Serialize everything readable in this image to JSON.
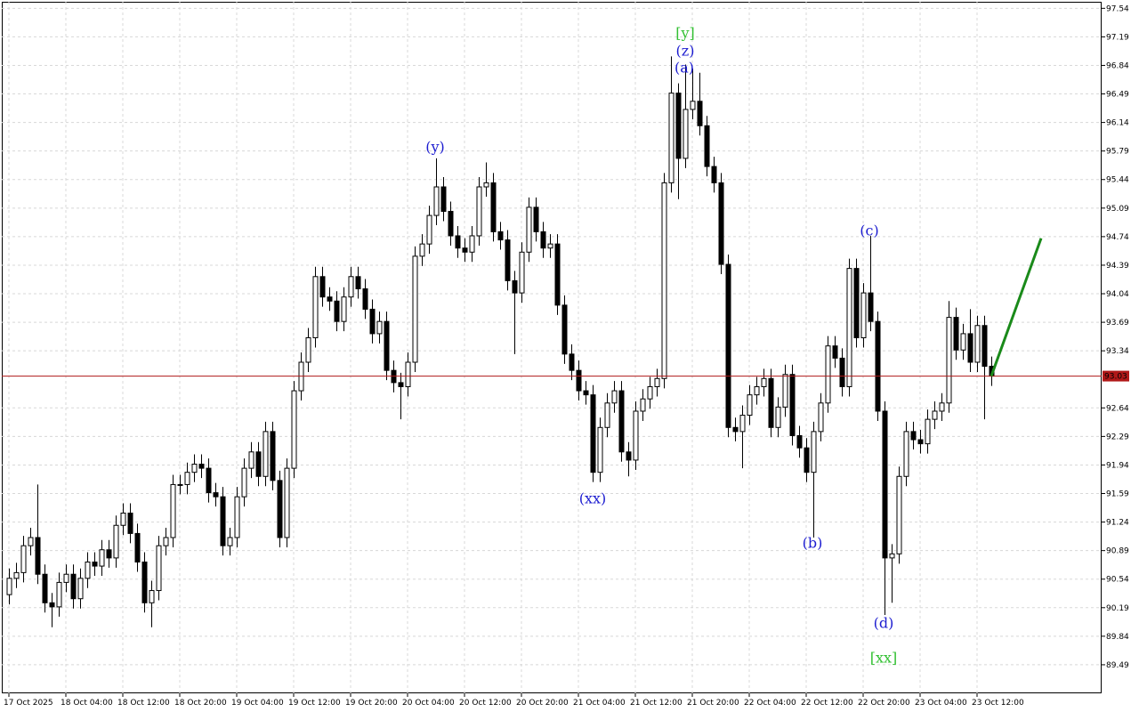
{
  "chart_data": {
    "type": "candlestick",
    "categories": [
      "17 Oct 2025",
      null,
      null,
      null,
      null,
      null,
      null,
      null,
      "18 Oct 04:00",
      null,
      null,
      null,
      null,
      null,
      null,
      null,
      "18 Oct 12:00",
      null,
      null,
      null,
      null,
      null,
      null,
      null,
      "18 Oct 20:00",
      null,
      null,
      null,
      null,
      null,
      null,
      null,
      "19 Oct 04:00",
      null,
      null,
      null,
      null,
      null,
      null,
      null,
      "19 Oct 12:00",
      null,
      null,
      null,
      null,
      null,
      null,
      null,
      "19 Oct 20:00",
      null,
      null,
      null,
      null,
      null,
      null,
      null,
      "20 Oct 04:00",
      null,
      null,
      null,
      null,
      null,
      null,
      null,
      "20 Oct 12:00",
      null,
      null,
      null,
      null,
      null,
      null,
      null,
      "20 Oct 20:00",
      null,
      null,
      null,
      null,
      null,
      null,
      null,
      "21 Oct 04:00",
      null,
      null,
      null,
      null,
      null,
      null,
      null,
      "21 Oct 12:00",
      null,
      null,
      null,
      null,
      null,
      null,
      null,
      "21 Oct 20:00",
      null,
      null,
      null,
      null,
      null,
      null,
      null,
      "22 Oct 04:00",
      null,
      null,
      null,
      null,
      null,
      null,
      null,
      "22 Oct 12:00",
      null,
      null,
      null,
      null,
      null,
      null,
      null,
      "22 Oct 20:00",
      null,
      null,
      null,
      null,
      null,
      null,
      null,
      "23 Oct 04:00",
      null,
      null,
      null,
      null,
      null,
      null,
      null,
      "23 Oct 12:00",
      null,
      null
    ],
    "open": [
      90.35,
      90.55,
      90.62,
      90.95,
      91.05,
      90.6,
      90.25,
      90.2,
      90.5,
      90.6,
      90.3,
      90.55,
      90.75,
      90.7,
      90.9,
      90.8,
      91.2,
      91.35,
      91.1,
      90.75,
      90.25,
      90.4,
      90.95,
      91.05,
      91.7,
      91.7,
      91.85,
      91.95,
      91.9,
      91.6,
      91.55,
      90.95,
      91.05,
      91.55,
      91.9,
      92.1,
      91.8,
      92.35,
      91.75,
      91.05,
      91.9,
      92.85,
      93.2,
      93.5,
      94.25,
      94.0,
      93.95,
      93.7,
      94.0,
      94.25,
      94.1,
      93.85,
      93.55,
      93.7,
      93.1,
      92.95,
      92.9,
      93.2,
      94.5,
      94.65,
      95.0,
      95.35,
      95.05,
      94.75,
      94.6,
      94.55,
      94.75,
      95.35,
      95.4,
      94.8,
      94.7,
      94.2,
      94.05,
      94.55,
      95.1,
      94.8,
      94.6,
      94.65,
      93.9,
      93.3,
      93.1,
      92.85,
      92.8,
      91.85,
      92.4,
      92.7,
      92.85,
      92.1,
      92.0,
      92.6,
      92.75,
      92.9,
      93.0,
      95.4,
      96.5,
      95.7,
      96.3,
      96.4,
      96.1,
      95.6,
      95.4,
      94.4,
      92.4,
      92.35,
      92.55,
      92.8,
      92.9,
      93.0,
      92.4,
      92.65,
      93.05,
      92.3,
      92.15,
      91.85,
      92.35,
      92.7,
      93.4,
      93.25,
      92.9,
      94.35,
      93.5,
      94.05,
      93.7,
      92.6,
      90.8,
      90.85,
      91.8,
      92.35,
      92.25,
      92.2,
      92.5,
      92.6,
      92.7,
      93.75,
      93.35,
      93.55,
      93.2,
      93.65,
      93.15
    ],
    "high": [
      90.67,
      90.74,
      91.07,
      91.17,
      91.7,
      90.72,
      90.37,
      90.62,
      90.72,
      90.72,
      90.67,
      90.87,
      90.87,
      91.02,
      91.02,
      91.32,
      91.47,
      91.47,
      91.22,
      90.87,
      90.52,
      91.07,
      91.17,
      91.82,
      91.82,
      91.97,
      92.07,
      92.07,
      92.02,
      91.72,
      91.67,
      91.17,
      91.67,
      92.02,
      92.22,
      92.22,
      92.47,
      92.47,
      91.87,
      92.02,
      92.97,
      93.32,
      93.62,
      94.37,
      94.37,
      94.12,
      94.07,
      94.12,
      94.37,
      94.37,
      94.22,
      93.97,
      93.82,
      93.82,
      93.22,
      93.07,
      93.32,
      94.62,
      94.77,
      95.12,
      95.7,
      95.47,
      95.17,
      94.87,
      94.72,
      94.87,
      95.47,
      95.65,
      95.52,
      94.92,
      94.82,
      94.32,
      94.67,
      95.22,
      95.22,
      94.92,
      94.77,
      94.77,
      94.02,
      93.42,
      93.22,
      92.97,
      92.92,
      92.52,
      92.82,
      92.97,
      92.97,
      92.22,
      92.72,
      92.87,
      93.02,
      93.12,
      95.52,
      96.95,
      96.62,
      96.85,
      96.8,
      96.75,
      96.22,
      95.72,
      95.52,
      94.52,
      92.52,
      92.67,
      92.92,
      93.02,
      93.12,
      93.12,
      92.77,
      93.17,
      93.17,
      92.42,
      92.27,
      92.47,
      92.82,
      93.52,
      93.52,
      93.37,
      94.47,
      94.47,
      94.17,
      94.75,
      93.82,
      92.72,
      90.97,
      91.92,
      92.47,
      92.47,
      92.37,
      92.62,
      92.72,
      92.82,
      93.95,
      93.87,
      93.67,
      93.85,
      93.77,
      93.77,
      93.27
    ],
    "low": [
      90.23,
      90.43,
      90.5,
      90.83,
      90.48,
      90.13,
      89.95,
      90.08,
      90.38,
      90.18,
      90.18,
      90.43,
      90.58,
      90.58,
      90.68,
      90.68,
      91.08,
      90.98,
      90.63,
      90.13,
      89.95,
      90.28,
      90.83,
      90.93,
      91.58,
      91.58,
      91.73,
      91.78,
      91.48,
      91.43,
      90.83,
      90.83,
      90.93,
      91.43,
      91.78,
      91.68,
      91.68,
      91.63,
      90.93,
      90.93,
      91.78,
      92.73,
      93.08,
      93.38,
      93.88,
      93.83,
      93.58,
      93.58,
      93.88,
      93.98,
      93.73,
      93.43,
      93.43,
      92.98,
      92.83,
      92.5,
      92.78,
      93.08,
      94.38,
      94.53,
      94.88,
      94.93,
      94.63,
      94.48,
      94.43,
      94.43,
      94.63,
      95.23,
      94.68,
      94.58,
      94.08,
      93.3,
      93.93,
      94.43,
      94.68,
      94.48,
      94.48,
      93.78,
      93.18,
      92.98,
      92.73,
      92.68,
      91.73,
      91.73,
      92.28,
      92.58,
      91.98,
      91.8,
      91.88,
      92.48,
      92.63,
      92.78,
      92.88,
      95.28,
      95.2,
      95.58,
      96.18,
      95.98,
      95.48,
      95.28,
      94.28,
      92.28,
      92.23,
      91.9,
      92.43,
      92.68,
      92.78,
      92.28,
      92.28,
      92.53,
      92.18,
      92.03,
      91.73,
      91.05,
      92.23,
      92.58,
      93.13,
      92.78,
      92.78,
      93.38,
      93.38,
      93.58,
      92.48,
      90.1,
      90.25,
      90.73,
      91.68,
      92.13,
      92.08,
      92.08,
      92.38,
      92.48,
      92.58,
      93.23,
      93.23,
      93.08,
      93.08,
      92.5,
      92.91
    ],
    "close": [
      90.55,
      90.62,
      90.95,
      91.05,
      90.6,
      90.25,
      90.2,
      90.5,
      90.6,
      90.3,
      90.55,
      90.75,
      90.7,
      90.9,
      90.8,
      91.2,
      91.35,
      91.1,
      90.75,
      90.25,
      90.4,
      90.95,
      91.05,
      91.7,
      91.7,
      91.85,
      91.95,
      91.9,
      91.6,
      91.55,
      90.95,
      91.05,
      91.55,
      91.9,
      92.1,
      91.8,
      92.35,
      91.75,
      91.05,
      91.9,
      92.85,
      93.2,
      93.5,
      94.25,
      94.0,
      93.95,
      93.7,
      94.0,
      94.25,
      94.1,
      93.85,
      93.55,
      93.7,
      93.1,
      92.95,
      92.9,
      93.2,
      94.5,
      94.65,
      95.0,
      95.35,
      95.05,
      94.75,
      94.6,
      94.55,
      94.75,
      95.35,
      95.4,
      94.8,
      94.7,
      94.2,
      94.05,
      94.55,
      95.1,
      94.8,
      94.6,
      94.65,
      93.9,
      93.3,
      93.1,
      92.85,
      92.8,
      91.85,
      92.4,
      92.7,
      92.85,
      92.1,
      92.0,
      92.6,
      92.75,
      92.9,
      93.0,
      95.4,
      96.5,
      95.7,
      96.3,
      96.4,
      96.1,
      95.6,
      95.4,
      94.4,
      92.4,
      92.35,
      92.55,
      92.8,
      92.9,
      93.0,
      92.4,
      92.65,
      93.05,
      92.3,
      92.15,
      91.85,
      92.35,
      92.7,
      93.4,
      93.25,
      92.9,
      94.35,
      93.5,
      94.05,
      93.7,
      92.6,
      90.8,
      90.85,
      91.8,
      92.35,
      92.25,
      92.2,
      92.5,
      92.6,
      92.7,
      93.75,
      93.35,
      93.55,
      93.2,
      93.65,
      93.15,
      93.03
    ],
    "up_color": "#ffffff",
    "down_color": "#000000",
    "ylim": [
      89.14,
      97.62
    ],
    "yticks": [
      97.54,
      97.19,
      96.84,
      96.49,
      96.14,
      95.79,
      95.44,
      95.09,
      94.74,
      94.39,
      94.04,
      93.69,
      93.34,
      92.64,
      92.29,
      91.94,
      91.59,
      91.24,
      90.89,
      90.54,
      90.19,
      89.84,
      89.49
    ],
    "grid": true,
    "current_price": 93.03,
    "current_price_color": "#b01818",
    "forecast": {
      "color": "#1a8a1a",
      "values": [
        93.03,
        94.72
      ]
    },
    "annotations": [
      {
        "text": "[y]",
        "color": "#33c033"
      },
      {
        "text": "(z)",
        "color": "#1c1cd0"
      },
      {
        "text": "(a)",
        "color": "#1c1cd0"
      },
      {
        "text": "(y)",
        "color": "#1c1cd0"
      },
      {
        "text": "(xx)",
        "color": "#1c1cd0"
      },
      {
        "text": "(b)",
        "color": "#1c1cd0"
      },
      {
        "text": "(c)",
        "color": "#1c1cd0"
      },
      {
        "text": "(d)",
        "color": "#1c1cd0"
      },
      {
        "text": "[xx]",
        "color": "#33c033"
      }
    ]
  }
}
